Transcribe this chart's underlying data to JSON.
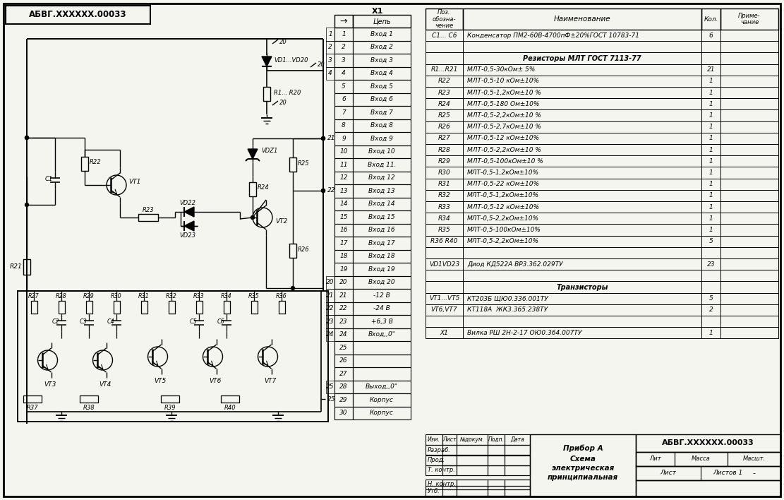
{
  "bg_color": "#f5f5f0",
  "line_color": "#000000",
  "title_box_text": "АБВГ.XXXXXX.00033",
  "connector_label": "X1",
  "connector_header": [
    "→",
    "Цепь"
  ],
  "connector_rows": [
    [
      "1",
      "Вход 1"
    ],
    [
      "2",
      "Вход 2"
    ],
    [
      "3",
      "Вход 3"
    ],
    [
      "4",
      "Вход 4"
    ],
    [
      "5",
      "Вход 5"
    ],
    [
      "6",
      "Вход 6"
    ],
    [
      "7",
      "Вход 7"
    ],
    [
      "8",
      "Вход 8"
    ],
    [
      "9",
      "Вход 9"
    ],
    [
      "10",
      "Вход 10"
    ],
    [
      "11",
      "Вход 11."
    ],
    [
      "12",
      "Вход 12"
    ],
    [
      "13",
      "Вход 13"
    ],
    [
      "14",
      "Вход 14"
    ],
    [
      "15",
      "Вход 15"
    ],
    [
      "16",
      "Вход 16"
    ],
    [
      "17",
      "Вход 17"
    ],
    [
      "18",
      "Вход 18"
    ],
    [
      "19",
      "Вход 19"
    ],
    [
      "20",
      "Вход 20"
    ],
    [
      "21",
      "-12 В"
    ],
    [
      "22",
      "-24 В"
    ],
    [
      "23",
      "+6,3 В"
    ],
    [
      "24",
      "Вход,,0\""
    ],
    [
      "25",
      ""
    ],
    [
      "26",
      ""
    ],
    [
      "27",
      ""
    ],
    [
      "28",
      "Выход,,0\""
    ],
    [
      "29",
      "Корпус"
    ],
    [
      "30",
      "Корпус"
    ]
  ],
  "left_group_labels": [
    [
      0,
      "1"
    ],
    [
      1,
      "2"
    ],
    [
      2,
      "3"
    ],
    [
      3,
      "4"
    ],
    [
      19,
      "20"
    ],
    [
      20,
      "21"
    ],
    [
      21,
      "22"
    ],
    [
      22,
      "23"
    ],
    [
      23,
      "24"
    ],
    [
      27,
      "25"
    ]
  ],
  "table_rows": [
    [
      "C1... C6",
      "Конденсатор ПМ2-60В-4700пФ±20%ГОСТ 10783-71",
      "6",
      ""
    ],
    [
      "",
      "",
      "",
      ""
    ],
    [
      "",
      "Резисторы МЛТ ГОСТ 7113-77",
      "",
      ""
    ],
    [
      "R1...R21",
      "МЛТ-0,5-30кОм± 5%",
      "21",
      ""
    ],
    [
      "R22",
      "МЛТ-0,5-10 кОм±10%",
      "1",
      ""
    ],
    [
      "R23",
      "МЛТ-0,5-1,2кОм±10 %",
      "1",
      ""
    ],
    [
      "R24",
      "МЛТ-0,5-180 Ом±10%",
      "1",
      ""
    ],
    [
      "R25",
      "МЛТ-0,5-2,2кОм±10 %",
      "1",
      ""
    ],
    [
      "R26",
      "МЛТ-0,5-2,7кОм±10 %",
      "1",
      ""
    ],
    [
      "R27",
      "МЛТ-0,5-12 кОм±10%",
      "1",
      ""
    ],
    [
      "R28",
      "МЛТ-0,5-2,2кОм±10 %",
      "1",
      ""
    ],
    [
      "R29",
      "МЛТ-0,5-100кОм±10 %",
      "1",
      ""
    ],
    [
      "R30",
      "МЛТ-0,5-1,2кОм±10%",
      "1",
      ""
    ],
    [
      "R31",
      "МЛТ-0,5-22 кОм±10%",
      "1",
      ""
    ],
    [
      "R32",
      "МЛТ-0,5-1,2кОм±10%",
      "1",
      ""
    ],
    [
      "R33",
      "МЛТ-0,5-12 кОм±10%",
      "1",
      ""
    ],
    [
      "R34",
      "МЛТ-0,5-2,2кОм±10%",
      "1",
      ""
    ],
    [
      "R35",
      "МЛТ-0,5-100кОм±10%",
      "1",
      ""
    ],
    [
      "R36 R40",
      "МЛТ-0,5-2,2кОм±10%",
      "5",
      ""
    ],
    [
      "",
      "",
      "",
      ""
    ],
    [
      "VD1VD23",
      "Диод КД522А ВΡ3.362.029ТУ",
      "23",
      ""
    ],
    [
      "",
      "",
      "",
      ""
    ],
    [
      "",
      "Транзисторы",
      "",
      ""
    ],
    [
      "VT1...VT5",
      "КТ203Б ЩЮ0.336.001ТУ",
      "5",
      ""
    ],
    [
      "VT6,VT7",
      "КТ118А  ЖК3.365.238ТУ",
      "2",
      ""
    ],
    [
      "",
      "",
      "",
      ""
    ],
    [
      "X1",
      "Вилка РШ 2Н-2-17 ОЮ0.364.007ТУ",
      "1",
      ""
    ]
  ],
  "bottom_left_header": [
    "Изм.",
    "Лист",
    "№докум.",
    "Подп.",
    "Дата"
  ],
  "bottom_left_rows": [
    "Разраб.",
    "Прод.",
    "Т. контр.",
    "Н. контр.",
    "Утб."
  ],
  "bottom_title": "АБВГ.XXXXXX.00033",
  "device_name": "Прибор А\nСхема\nэлектрическая\nпринципиальная",
  "lit_label": "Лит",
  "mass_label": "Масса",
  "scale_label": "Масшт.",
  "scale_value": "-",
  "sheet_label": "Лист",
  "sheets_label": "Листов 1"
}
